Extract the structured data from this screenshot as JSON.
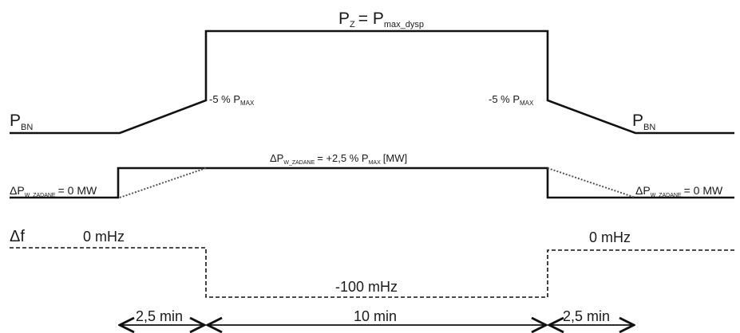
{
  "top": {
    "p_z_main": "P",
    "p_z_sub": "Z",
    "p_z_eq": "= P",
    "p_z_sub2": "max_dysp",
    "left_pbn_main": "P",
    "left_pbn_sub": "BN",
    "right_pbn_main": "P",
    "right_pbn_sub": "BN",
    "left_pct_main": "-5 % P",
    "left_pct_sub": "MAX",
    "right_pct_main": "-5 % P",
    "right_pct_sub": "MAX"
  },
  "middle": {
    "label_prefix": "ΔP",
    "label_sub": "W_ZADANE",
    "label_eq": "= +2,5 % P",
    "label_sub2": "MAX",
    "label_unit": "[MW]",
    "left_prefix": "ΔP",
    "left_sub": "W_ZADANE",
    "left_value": "= 0 MW",
    "right_prefix": "ΔP",
    "right_sub": "W_ZADANE",
    "right_value": "= 0 MW"
  },
  "bottom": {
    "delta_f": "Δf",
    "left_value": "0 mHz",
    "right_value": "0 mHz",
    "center_value": "-100 mHz"
  },
  "timeline": {
    "seg1": "2,5 min",
    "seg2": "10 min",
    "seg3": "2,5 min"
  },
  "colors": {
    "line": "#111111",
    "ramp": "#555555"
  }
}
